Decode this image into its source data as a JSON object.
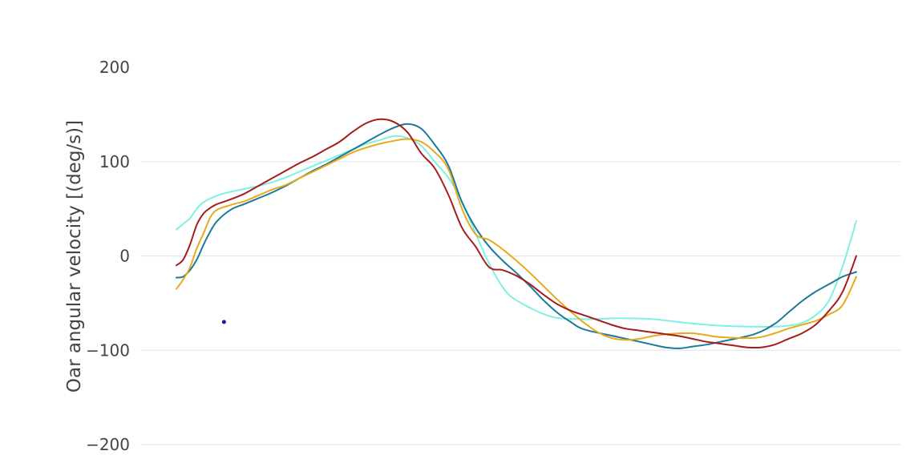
{
  "chart_data": {
    "type": "line",
    "ylabel": "Oar angular velocity [(deg/s)]",
    "ylim": [
      -200,
      200
    ],
    "yticks": [
      {
        "value": 200,
        "label": "200"
      },
      {
        "value": 100,
        "label": "100"
      },
      {
        "value": 0,
        "label": "0"
      },
      {
        "value": -100,
        "label": "−100"
      },
      {
        "value": -200,
        "label": "−200"
      }
    ],
    "xlim": [
      0,
      100
    ],
    "grid": true,
    "series": [
      {
        "color": "#7ff0e1",
        "x": [
          0,
          1,
          2,
          3,
          4,
          6,
          8,
          10,
          12,
          14,
          16,
          18,
          20,
          22,
          24,
          26,
          28,
          29,
          30,
          32,
          34,
          36,
          38,
          40,
          42,
          44,
          46,
          48,
          50,
          55,
          60,
          65,
          70,
          75,
          80,
          85,
          88,
          90,
          92,
          94,
          96,
          98,
          100
        ],
        "y": [
          28,
          34,
          40,
          50,
          57,
          64,
          68,
          71,
          74,
          78,
          83,
          89,
          95,
          101,
          107,
          113,
          119,
          121,
          123,
          127,
          125,
          117,
          100,
          83,
          58,
          24,
          -8,
          -33,
          -47,
          -64,
          -67,
          -66,
          -67,
          -71,
          -74,
          -75,
          -75,
          -74,
          -71,
          -63,
          -47,
          -11,
          37
        ]
      },
      {
        "color": "#1a7a99",
        "x": [
          0,
          1,
          2,
          3,
          4,
          5,
          6,
          8,
          10,
          12,
          14,
          16,
          18,
          20,
          22,
          24,
          26,
          28,
          30,
          32,
          34,
          36,
          38,
          40,
          42,
          44,
          46,
          48,
          50,
          52,
          54,
          56,
          58,
          60,
          65,
          70,
          72,
          74,
          76,
          78,
          80,
          85,
          88,
          90,
          92,
          94,
          96,
          98,
          100
        ],
        "y": [
          -23,
          -22,
          -15,
          -4,
          12,
          26,
          37,
          49,
          55,
          61,
          67,
          74,
          82,
          90,
          97,
          105,
          113,
          121,
          129,
          136,
          140,
          135,
          118,
          96,
          57,
          30,
          10,
          -5,
          -18,
          -32,
          -47,
          -60,
          -70,
          -78,
          -86,
          -94,
          -97,
          -98,
          -96,
          -94,
          -91,
          -83,
          -72,
          -60,
          -48,
          -38,
          -30,
          -22,
          -17
        ]
      },
      {
        "color": "#e8a91c",
        "x": [
          0,
          1,
          2,
          3,
          4,
          5,
          6,
          8,
          10,
          12,
          14,
          16,
          18,
          20,
          22,
          24,
          26,
          28,
          30,
          32,
          34,
          36,
          38,
          40,
          42,
          44,
          46,
          48,
          50,
          52,
          54,
          56,
          58,
          60,
          62,
          64,
          66,
          68,
          70,
          72,
          74,
          76,
          78,
          80,
          85,
          88,
          90,
          92,
          94,
          96,
          98,
          100
        ],
        "y": [
          -35,
          -25,
          -12,
          8,
          24,
          41,
          49,
          54,
          58,
          64,
          70,
          75,
          82,
          89,
          96,
          103,
          110,
          115,
          119,
          122,
          124,
          121,
          110,
          92,
          50,
          23,
          17,
          7,
          -5,
          -18,
          -32,
          -46,
          -59,
          -71,
          -81,
          -87,
          -89,
          -88,
          -85,
          -83,
          -82,
          -82,
          -84,
          -86,
          -87,
          -82,
          -77,
          -73,
          -69,
          -62,
          -52,
          -22
        ]
      },
      {
        "color": "#a51c1c",
        "x": [
          0,
          1,
          2,
          3,
          4,
          5,
          6,
          8,
          10,
          12,
          14,
          16,
          18,
          20,
          22,
          24,
          26,
          28,
          30,
          32,
          34,
          36,
          38,
          40,
          42,
          44,
          46,
          48,
          50,
          52,
          54,
          56,
          58,
          60,
          62,
          64,
          66,
          68,
          70,
          72,
          74,
          76,
          78,
          80,
          82,
          84,
          86,
          88,
          90,
          92,
          94,
          96,
          98,
          100
        ],
        "y": [
          -10,
          -4,
          12,
          33,
          45,
          51,
          55,
          60,
          66,
          74,
          82,
          90,
          98,
          105,
          113,
          121,
          132,
          141,
          145,
          142,
          131,
          109,
          93,
          65,
          30,
          10,
          -12,
          -15,
          -21,
          -30,
          -41,
          -51,
          -58,
          -63,
          -68,
          -73,
          -77,
          -79,
          -81,
          -83,
          -85,
          -88,
          -91,
          -93,
          -95,
          -97,
          -97,
          -94,
          -88,
          -82,
          -73,
          -58,
          -38,
          0
        ]
      }
    ],
    "scatter_points": [
      {
        "x": 7,
        "y": -70,
        "color": "#1a1aa0"
      }
    ]
  }
}
